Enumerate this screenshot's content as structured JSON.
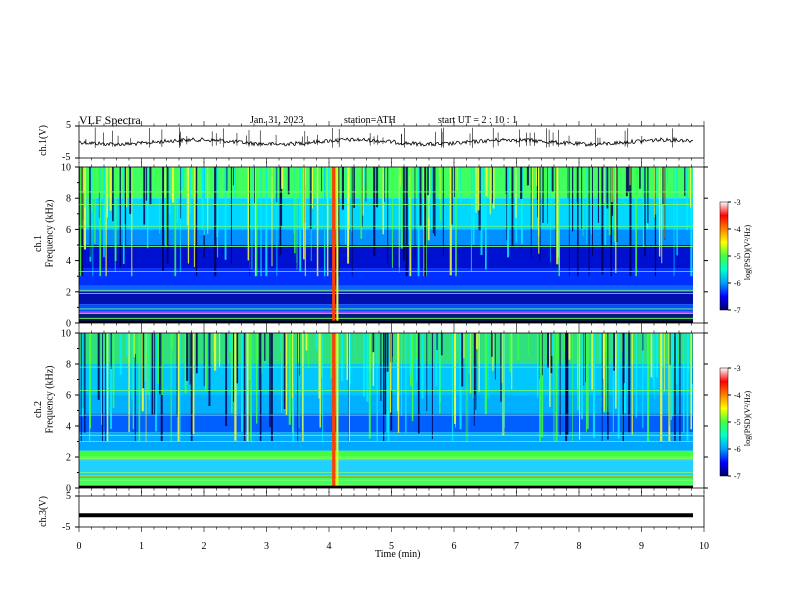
{
  "header": {
    "title": "VLF  Spectra",
    "date": "Jan. 31, 2023",
    "station": "station=ATH",
    "start_ut": "start  UT  =   2  : 10 : 1"
  },
  "chart_data": [
    {
      "type": "line",
      "panel": "ch1-waveform",
      "ylabel": "ch.1(V)",
      "yticks": [
        "5",
        "-5"
      ],
      "ylim": [
        -5,
        5
      ],
      "description_level": "noisy trace near 0.3 V"
    },
    {
      "type": "heatmap",
      "panel": "ch1-spectrogram",
      "ylabel": "ch.1\nFrequency (kHz)",
      "ylabel_line1": "ch.1",
      "ylabel_line2": "Frequency  (kHz)",
      "ylim": [
        0,
        10
      ],
      "yticks": [
        "0",
        "2",
        "4",
        "6",
        "8",
        "10"
      ],
      "colorbar": {
        "label": "log(PSD)(V²/Hz)",
        "ticks": [
          "-3",
          "-4",
          "-5",
          "-6",
          "-7"
        ],
        "range": [
          -7,
          -3
        ]
      }
    },
    {
      "type": "heatmap",
      "panel": "ch2-spectrogram",
      "ylabel_line1": "ch.2",
      "ylabel_line2": "Frequency  (kHz)",
      "ylim": [
        0,
        10
      ],
      "yticks": [
        "0",
        "2",
        "4",
        "6",
        "8",
        "10"
      ],
      "colorbar": {
        "label": "log(PSD)(V²/Hz)",
        "ticks": [
          "-3",
          "-4",
          "-5",
          "-6",
          "-7"
        ],
        "range": [
          -7,
          -3
        ]
      }
    },
    {
      "type": "line",
      "panel": "ch3-waveform",
      "ylabel": "ch.3(V)",
      "yticks": [
        "5",
        "-5"
      ],
      "ylim": [
        -5,
        5
      ],
      "level": -1.2
    }
  ],
  "xaxis": {
    "label": "Time  (min)",
    "ticks": [
      "0",
      "1",
      "2",
      "3",
      "4",
      "5",
      "6",
      "7",
      "8",
      "9",
      "10"
    ],
    "xlim": [
      0,
      10
    ]
  },
  "colors": {
    "colormap": [
      "#000070",
      "#0000ff",
      "#00a0ff",
      "#00ffcc",
      "#40ff40",
      "#ffff00",
      "#ff8000",
      "#ff0000",
      "#ffffff"
    ]
  }
}
